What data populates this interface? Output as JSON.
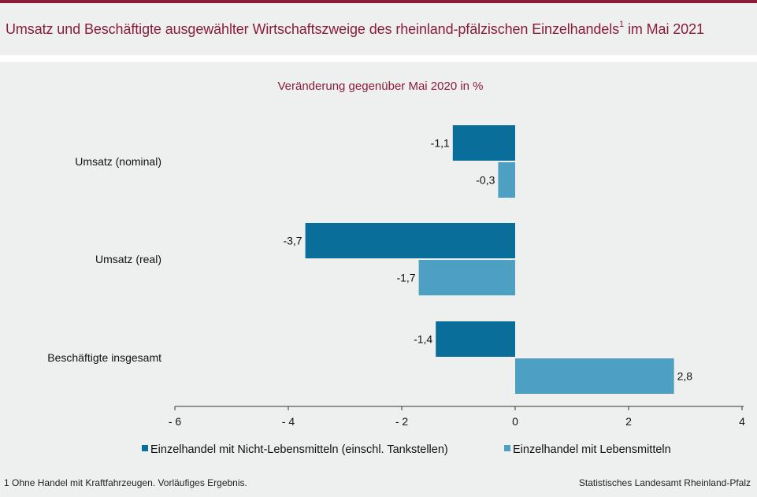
{
  "title": "Umsatz und Beschäftigte ausgewählter Wirtschaftszweige des rheinland-pfälzischen Einzelhandels",
  "title_footnote_mark": "1",
  "title_suffix": " im Mai 2021",
  "footnote": "1 Ohne Handel mit Kraftfahrzeugen.  Vorläufiges  Ergebnis.",
  "source": "Statistisches Landesamt Rheinland-Pfalz",
  "colors": {
    "accent": "#8a1c3a",
    "series_dark": "#0a6e9b",
    "series_light": "#4ea0c2",
    "background": "#eef0ef"
  },
  "chart_data": {
    "type": "bar",
    "orientation": "horizontal",
    "subtitle": "Veränderung  gegenüber  Mai 2020 in %",
    "categories": [
      "Umsatz (nominal)",
      "Umsatz (real)",
      "Beschäftigte insgesamt"
    ],
    "series": [
      {
        "name": "Einzelhandel mit Nicht-Lebensmitteln (einschl. Tankstellen)",
        "values": [
          -1.1,
          -3.7,
          -1.4
        ],
        "labels": [
          "-1,1",
          "-3,7",
          "-1,4"
        ],
        "color": "#0a6e9b"
      },
      {
        "name": "Einzelhandel mit Lebensmitteln",
        "values": [
          -0.3,
          -1.7,
          2.8
        ],
        "labels": [
          "-0,3",
          "-1,7",
          "2,8"
        ],
        "color": "#4ea0c2"
      }
    ],
    "xlim": [
      -6,
      4
    ],
    "xticks": [
      -6,
      -4,
      -2,
      0,
      2,
      4
    ],
    "xtick_labels": [
      "- 6",
      "- 4",
      "- 2",
      "0",
      "2",
      "4"
    ],
    "grid": false,
    "legend_position": "bottom"
  }
}
